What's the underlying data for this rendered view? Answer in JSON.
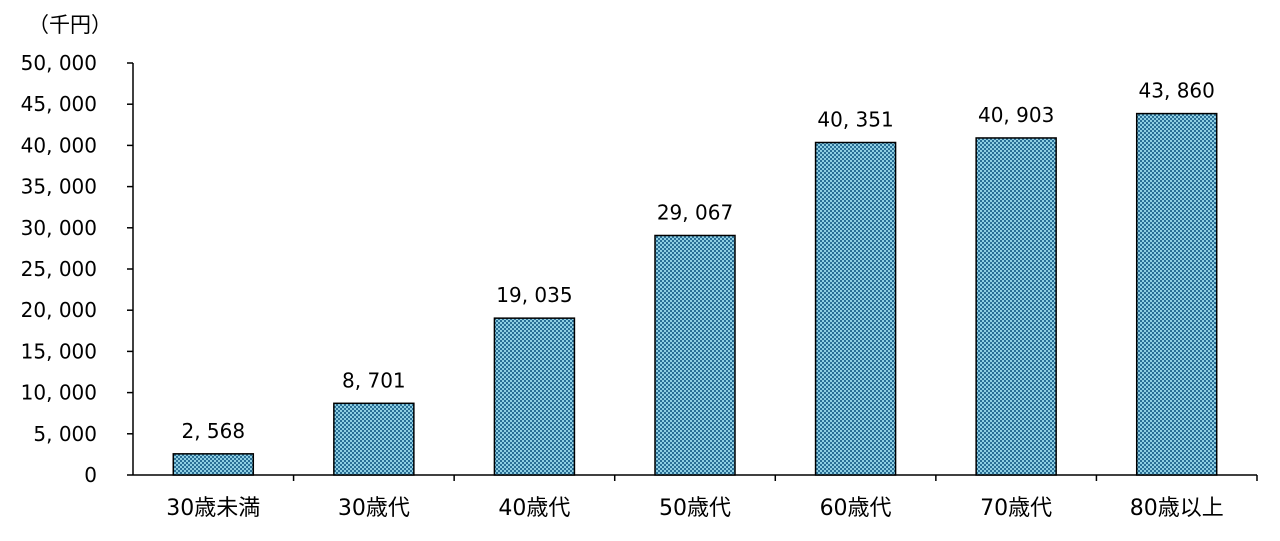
{
  "chart_data": {
    "type": "bar",
    "title": "",
    "xlabel": "",
    "ylabel": "",
    "unit_label": "（千円）",
    "categories": [
      "30歳未満",
      "30歳代",
      "40歳代",
      "50歳代",
      "60歳代",
      "70歳代",
      "80歳以上"
    ],
    "values": [
      2568,
      8701,
      19035,
      29067,
      40351,
      40903,
      43860
    ],
    "value_labels": [
      "2, 568",
      "8, 701",
      "19, 035",
      "29, 067",
      "40, 351",
      "40, 903",
      "43, 860"
    ],
    "ylim": [
      0,
      50000
    ],
    "yticks": [
      0,
      5000,
      10000,
      15000,
      20000,
      25000,
      30000,
      35000,
      40000,
      45000,
      50000
    ],
    "ytick_labels": [
      "0",
      "5, 000",
      "10, 000",
      "15, 000",
      "20, 000",
      "25, 000",
      "30, 000",
      "35, 000",
      "40, 000",
      "45, 000",
      "50, 000"
    ],
    "grid": false,
    "legend": "none",
    "bar_color": "#8ecfe3",
    "bar_pattern_color": "#2a6f96"
  }
}
